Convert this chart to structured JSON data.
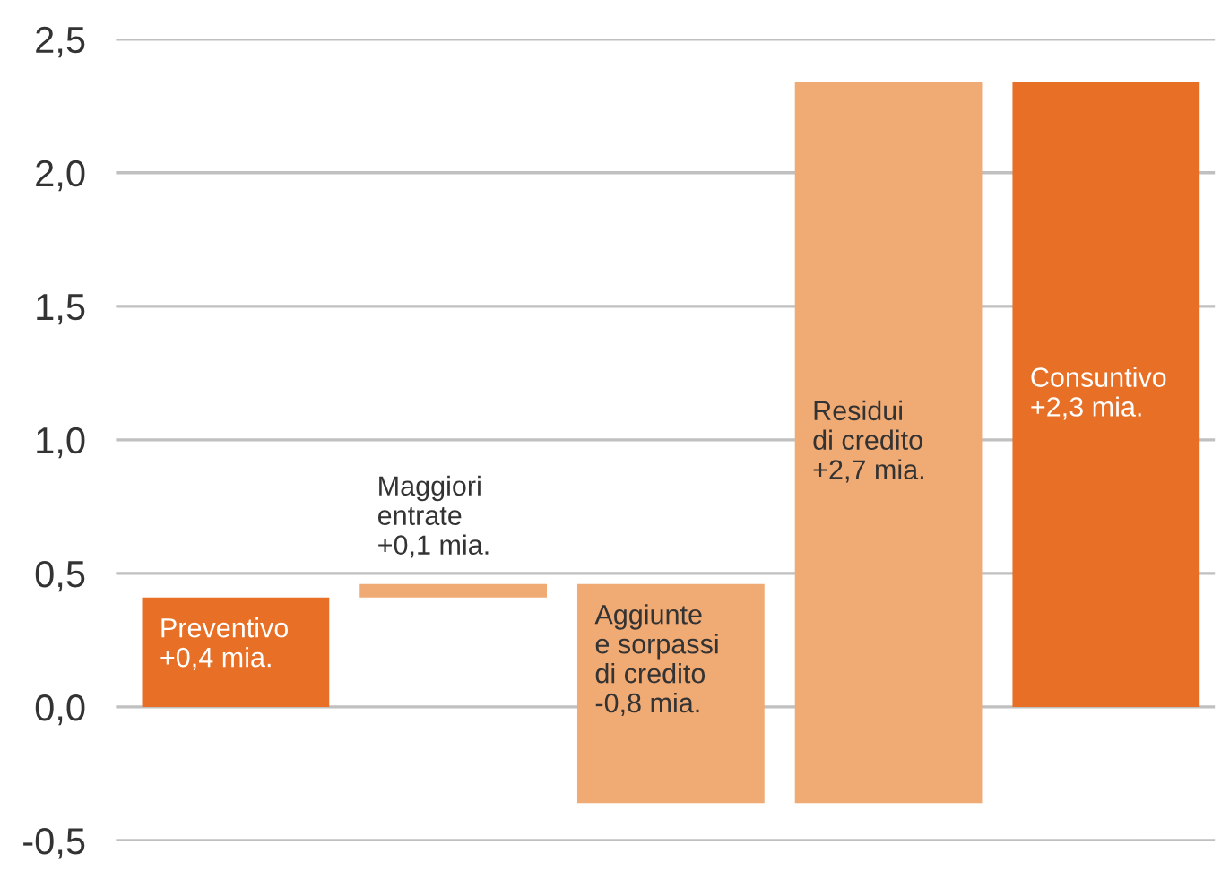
{
  "chart_data": {
    "type": "bar",
    "categories": [
      null,
      null,
      null,
      null,
      null
    ],
    "values": [
      0.41,
      0.05,
      -0.82,
      2.7,
      2.34
    ],
    "base": [
      0,
      0.41,
      0.46,
      -0.36,
      0
    ],
    "colors": [
      "#e87026",
      "#f0aa74",
      "#f0aa74",
      "#f0aa74",
      "#e87026"
    ],
    "value_labels": [
      "Preventivo\n+0,4 mia.",
      "Maggiori\nentrate\n+0,1 mia.",
      "Aggiunte\ne sorpassi\ndi credito\n-0,8 mia.",
      "Residui\ndi credito\n+2,7 mia.",
      "Consuntivo\n+2,3 mia."
    ],
    "ylim": [
      -0.5,
      2.5
    ],
    "yticks": [
      {
        "value": -0.5,
        "label": "-0,5"
      },
      {
        "value": 0,
        "label": "0,0"
      },
      {
        "value": 0.5,
        "label": "0,5"
      },
      {
        "value": 1,
        "label": "1,0"
      },
      {
        "value": 1.5,
        "label": "1,5"
      },
      {
        "value": 2,
        "label": "2,0"
      },
      {
        "value": 2.5,
        "label": "2,5"
      }
    ],
    "grid": "y"
  }
}
